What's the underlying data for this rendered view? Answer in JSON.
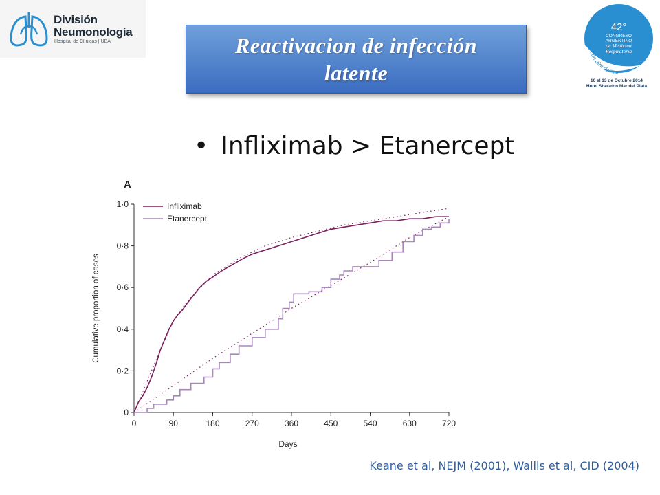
{
  "logo_left": {
    "line1": "División",
    "line2": "Neumonología",
    "line3": "Hospital de Clínicas | UBA",
    "color": "#2a8fd0"
  },
  "title": {
    "line1": "Reactivacion de infección",
    "line2": "latente"
  },
  "logo_right": {
    "number": "42°",
    "line1": "CONGRESO",
    "line2": "ARGENTINO",
    "line3": "de Medicina",
    "line4": "Respiratoria",
    "arc_text": "Con aire de mar",
    "date": "10 al 13 de Octubre 2014",
    "venue": "Hotel Sheraton Mar del Plata",
    "color": "#2a8fd0"
  },
  "bullet": {
    "symbol": "•",
    "text": "Infliximab > Etanercept"
  },
  "citation": "Keane et al, NEJM (2001), Wallis et al, CID (2004)",
  "chart_data": {
    "type": "line",
    "panel_label": "A",
    "xlabel": "Days",
    "ylabel": "Cumulative proportion of cases",
    "xlim": [
      0,
      720
    ],
    "ylim": [
      0,
      1.0
    ],
    "xticks": [
      0,
      90,
      180,
      270,
      360,
      450,
      540,
      630,
      720
    ],
    "xtick_labels": [
      "0",
      "90",
      "180",
      "270",
      "360",
      "450",
      "540",
      "630",
      "720"
    ],
    "yticks": [
      0,
      0.2,
      0.4,
      0.6,
      0.8,
      1.0
    ],
    "ytick_labels": [
      "0",
      "0·2",
      "0·4",
      "0·6",
      "0·8",
      "1·0"
    ],
    "grid": false,
    "legend_position": "top-left",
    "series": [
      {
        "name": "Infliximab",
        "color": "#7a1f5c",
        "step": false,
        "x": [
          0,
          10,
          20,
          30,
          40,
          50,
          60,
          70,
          80,
          90,
          100,
          110,
          120,
          135,
          150,
          165,
          180,
          200,
          225,
          250,
          270,
          300,
          330,
          360,
          390,
          420,
          450,
          480,
          510,
          540,
          570,
          600,
          630,
          660,
          690,
          720
        ],
        "y": [
          0,
          0.05,
          0.08,
          0.12,
          0.17,
          0.23,
          0.3,
          0.35,
          0.4,
          0.44,
          0.47,
          0.49,
          0.52,
          0.56,
          0.6,
          0.63,
          0.65,
          0.68,
          0.71,
          0.74,
          0.76,
          0.78,
          0.8,
          0.82,
          0.84,
          0.86,
          0.88,
          0.89,
          0.9,
          0.91,
          0.92,
          0.92,
          0.93,
          0.93,
          0.94,
          0.94
        ]
      },
      {
        "name": "Etanercept",
        "color": "#a887bd",
        "step": true,
        "x": [
          0,
          30,
          45,
          75,
          90,
          105,
          130,
          160,
          180,
          195,
          220,
          240,
          270,
          300,
          330,
          340,
          355,
          365,
          400,
          430,
          450,
          470,
          480,
          500,
          560,
          590,
          615,
          640,
          660,
          680,
          700,
          720
        ],
        "y": [
          0,
          0.02,
          0.04,
          0.06,
          0.08,
          0.11,
          0.14,
          0.17,
          0.21,
          0.24,
          0.28,
          0.32,
          0.36,
          0.4,
          0.45,
          0.5,
          0.53,
          0.57,
          0.58,
          0.6,
          0.64,
          0.66,
          0.68,
          0.7,
          0.73,
          0.77,
          0.82,
          0.85,
          0.88,
          0.89,
          0.91,
          0.93
        ]
      }
    ],
    "fitted_curves": [
      {
        "for": "Infliximab",
        "color": "#7a1f5c",
        "x": [
          0,
          30,
          60,
          90,
          120,
          180,
          240,
          300,
          360,
          420,
          480,
          540,
          600,
          660,
          720
        ],
        "y": [
          0,
          0.15,
          0.3,
          0.44,
          0.53,
          0.66,
          0.74,
          0.8,
          0.84,
          0.87,
          0.9,
          0.92,
          0.94,
          0.96,
          0.98
        ]
      },
      {
        "for": "Etanercept",
        "color": "#7a1f5c",
        "x": [
          0,
          90,
          180,
          270,
          360,
          450,
          540,
          630,
          720
        ],
        "y": [
          0,
          0.13,
          0.26,
          0.38,
          0.5,
          0.61,
          0.72,
          0.84,
          0.94
        ]
      }
    ]
  }
}
